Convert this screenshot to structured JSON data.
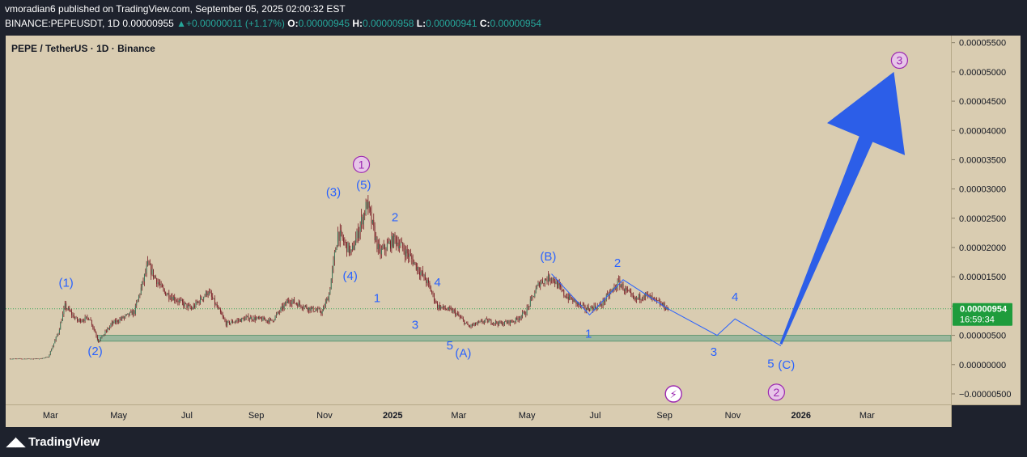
{
  "header": {
    "publisher_line": "vmoradian6 published on TradingView.com, September 05, 2025 02:00:32 EST",
    "symbol": "BINANCE:PEPEUSDT, 1D",
    "last": "0.00000955",
    "change": "+0.00000011 (+1.17%)",
    "o_label": "O:",
    "o": "0.00000945",
    "h_label": "H:",
    "h": "0.00000958",
    "l_label": "L:",
    "l": "0.00000941",
    "c_label": "C:",
    "c": "0.00000954"
  },
  "chart_title": "PEPE / TetherUS · 1D · Binance",
  "footer": {
    "brand": "TradingView"
  },
  "colors": {
    "background": "#d9ccb1",
    "candle": "#7a1e26",
    "wave_label": "#2962ff",
    "cycle_label": "#9c27b0",
    "support_band": "#8fb39a",
    "arrow": "#2c5ee8",
    "price_tag": "#1e9c3c"
  },
  "price_tag": {
    "value": "0.00000954",
    "countdown": "16:59:34",
    "price": 9.54e-06
  },
  "chart_data": {
    "type": "candlestick",
    "y_ticks": [
      "0.00005500",
      "0.00005000",
      "0.00004500",
      "0.00004000",
      "0.00003500",
      "0.00003000",
      "0.00002500",
      "0.00002000",
      "0.00001500",
      "0.00001000",
      "0.00000500",
      "0.00000000",
      "−0.00000500"
    ],
    "y_tick_values": [
      5.5e-05,
      5e-05,
      4.5e-05,
      4e-05,
      3.5e-05,
      3e-05,
      2.5e-05,
      2e-05,
      1.5e-05,
      1e-05,
      5e-06,
      0,
      -5e-06
    ],
    "ylim": [
      -6.8e-06,
      5.62e-05
    ],
    "x_ticks": [
      "Mar",
      "May",
      "Jul",
      "Sep",
      "Nov",
      "2025",
      "Mar",
      "May",
      "Jul",
      "Sep",
      "Nov",
      "2026",
      "Mar"
    ],
    "x_tick_dates": [
      "2024-03-01",
      "2024-05-01",
      "2024-07-01",
      "2024-09-01",
      "2024-11-01",
      "2025-01-01",
      "2025-03-01",
      "2025-05-01",
      "2025-07-01",
      "2025-09-01",
      "2025-11-01",
      "2026-01-01",
      "2026-03-01"
    ],
    "xlim": [
      "2024-01-21",
      "2026-05-15"
    ],
    "price_path": [
      [
        "2024-01-25",
        1e-06
      ],
      [
        "2024-02-20",
        1e-06
      ],
      [
        "2024-02-28",
        1.3e-06
      ],
      [
        "2024-03-08",
        5.5e-06
      ],
      [
        "2024-03-14",
        1e-05
      ],
      [
        "2024-03-25",
        7.5e-06
      ],
      [
        "2024-04-05",
        8e-06
      ],
      [
        "2024-04-13",
        4e-06
      ],
      [
        "2024-04-25",
        7e-06
      ],
      [
        "2024-05-15",
        9e-06
      ],
      [
        "2024-05-27",
        1.7e-05
      ],
      [
        "2024-06-10",
        1.25e-05
      ],
      [
        "2024-07-05",
        9.5e-06
      ],
      [
        "2024-07-20",
        1.25e-05
      ],
      [
        "2024-08-05",
        7e-06
      ],
      [
        "2024-08-25",
        8e-06
      ],
      [
        "2024-09-15",
        7.5e-06
      ],
      [
        "2024-09-30",
        1.1e-05
      ],
      [
        "2024-10-20",
        9.5e-06
      ],
      [
        "2024-10-30",
        9e-06
      ],
      [
        "2024-11-05",
        1.2e-05
      ],
      [
        "2024-11-13",
        2.25e-05
      ],
      [
        "2024-11-25",
        1.9e-05
      ],
      [
        "2024-12-09",
        2.75e-05
      ],
      [
        "2024-12-20",
        1.9e-05
      ],
      [
        "2025-01-03",
        2.15e-05
      ],
      [
        "2025-01-18",
        1.8e-05
      ],
      [
        "2025-02-01",
        1.4e-05
      ],
      [
        "2025-02-10",
        1e-05
      ],
      [
        "2025-02-25",
        9e-06
      ],
      [
        "2025-03-10",
        6.5e-06
      ],
      [
        "2025-03-25",
        7.5e-06
      ],
      [
        "2025-04-08",
        7e-06
      ],
      [
        "2025-04-20",
        7.5e-06
      ],
      [
        "2025-04-30",
        9e-06
      ],
      [
        "2025-05-12",
        1.4e-05
      ],
      [
        "2025-05-23",
        1.5e-05
      ],
      [
        "2025-06-03",
        1.2e-05
      ],
      [
        "2025-06-22",
        9.5e-06
      ],
      [
        "2025-07-05",
        1e-05
      ],
      [
        "2025-07-22",
        1.4e-05
      ],
      [
        "2025-08-05",
        1.1e-05
      ],
      [
        "2025-08-14",
        1.2e-05
      ],
      [
        "2025-09-04",
        9.55e-06
      ]
    ],
    "support_band": [
      4e-06,
      5e-06
    ],
    "current_price_line": 9.54e-06,
    "projection_path": [
      [
        "2025-09-04",
        9.54e-06
      ],
      [
        "2025-10-18",
        5e-06
      ],
      [
        "2025-11-03",
        7.8e-06
      ],
      [
        "2025-12-14",
        3.2e-06
      ]
    ],
    "wave_path_2025": [
      [
        "2025-05-23",
        1.55e-05
      ],
      [
        "2025-06-26",
        8.5e-06
      ],
      [
        "2025-07-26",
        1.45e-05
      ],
      [
        "2025-09-04",
        9.54e-06
      ]
    ],
    "arrow": {
      "from": [
        "2025-12-14",
        3.5e-06
      ],
      "to": [
        "2026-03-25",
        5e-05
      ]
    },
    "wave_labels": [
      {
        "text": "(1)",
        "date": "2024-03-15",
        "price": 1.33e-05,
        "kind": "wave"
      },
      {
        "text": "(2)",
        "date": "2024-04-10",
        "price": 1.6e-06,
        "kind": "wave"
      },
      {
        "text": "(3)",
        "date": "2024-11-09",
        "price": 2.88e-05,
        "kind": "wave"
      },
      {
        "text": "(4)",
        "date": "2024-11-24",
        "price": 1.45e-05,
        "kind": "wave"
      },
      {
        "text": "(5)",
        "date": "2024-12-06",
        "price": 3e-05,
        "kind": "wave"
      },
      {
        "text": "1",
        "date": "2024-12-04",
        "price": 3.35e-05,
        "kind": "cycle"
      },
      {
        "text": "1",
        "date": "2024-12-18",
        "price": 1.07e-05,
        "kind": "wave"
      },
      {
        "text": "2",
        "date": "2025-01-03",
        "price": 2.45e-05,
        "kind": "wave"
      },
      {
        "text": "3",
        "date": "2025-01-21",
        "price": 6.1e-06,
        "kind": "wave"
      },
      {
        "text": "4",
        "date": "2025-02-10",
        "price": 1.34e-05,
        "kind": "wave"
      },
      {
        "text": "5",
        "date": "2025-02-21",
        "price": 2.6e-06,
        "kind": "wave"
      },
      {
        "text": "(A)",
        "date": "2025-03-05",
        "price": 1.3e-06,
        "kind": "wave"
      },
      {
        "text": "(B)",
        "date": "2025-05-20",
        "price": 1.78e-05,
        "kind": "wave"
      },
      {
        "text": "1",
        "date": "2025-06-25",
        "price": 4.6e-06,
        "kind": "wave"
      },
      {
        "text": "2",
        "date": "2025-07-21",
        "price": 1.67e-05,
        "kind": "wave"
      },
      {
        "text": "3",
        "date": "2025-10-15",
        "price": 1.5e-06,
        "kind": "wave"
      },
      {
        "text": "4",
        "date": "2025-11-03",
        "price": 1.09e-05,
        "kind": "wave"
      },
      {
        "text": "5",
        "date": "2025-12-05",
        "price": -5e-07,
        "kind": "wave"
      },
      {
        "text": "(C)",
        "date": "2025-12-19",
        "price": -7e-07,
        "kind": "wave"
      },
      {
        "text": "2",
        "date": "2025-12-10",
        "price": -5.4e-06,
        "kind": "cycle"
      },
      {
        "text": "3",
        "date": "2026-03-30",
        "price": 5.13e-05,
        "kind": "cycle"
      }
    ]
  }
}
